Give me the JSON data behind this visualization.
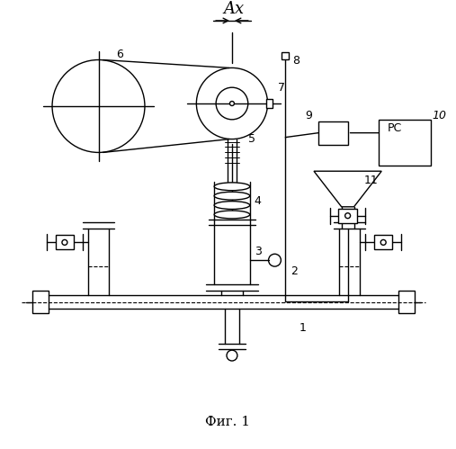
{
  "title": "Фиг. 1",
  "background_color": "#ffffff",
  "line_color": "#000000",
  "ax_label": "Ax"
}
